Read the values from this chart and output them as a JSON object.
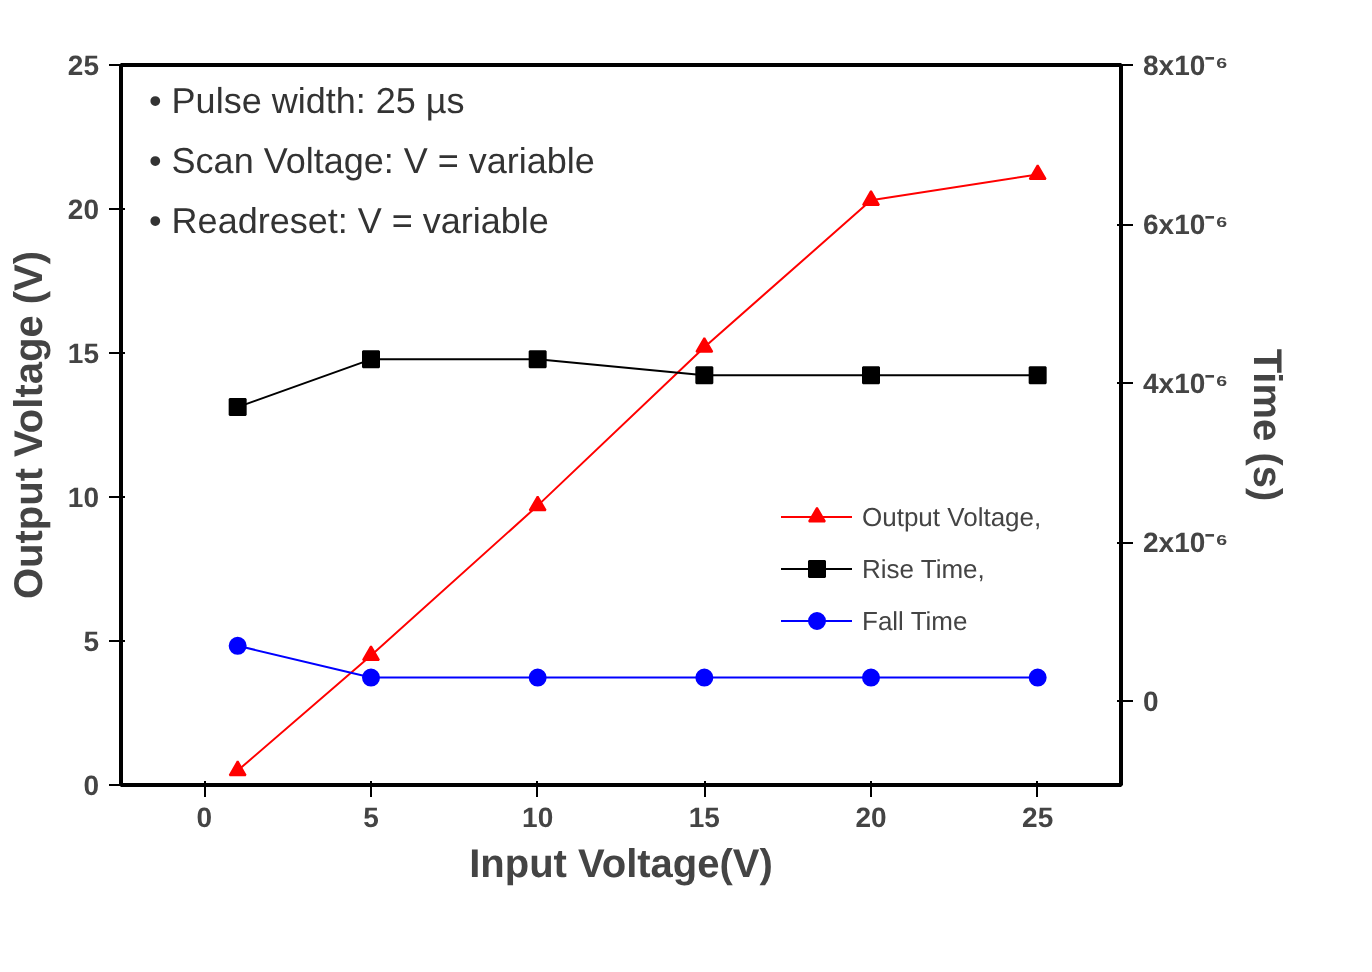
{
  "chart_data": {
    "type": "line",
    "xlabel": "Input Voltage(V)",
    "ylabel": "Output Voltage (V)",
    "y2label": "Time (s)",
    "x": [
      1,
      5,
      10,
      15,
      20,
      25
    ],
    "series": [
      {
        "name": "Output Voltage,",
        "color": "#ff0000",
        "marker": "triangle",
        "values": [
          0.5,
          4.5,
          9.7,
          15.2,
          20.3,
          21.2
        ]
      },
      {
        "name": "Rise Time,",
        "color": "#000000",
        "marker": "square",
        "axis": "y2",
        "values": [
          3.7e-06,
          4.3e-06,
          4.3e-06,
          4.1e-06,
          4.1e-06,
          4.1e-06
        ]
      },
      {
        "name": "Fall Time",
        "color": "#0000ff",
        "marker": "circle",
        "axis": "y2",
        "values": [
          7e-07,
          3e-07,
          3e-07,
          3e-07,
          3e-07,
          3e-07
        ]
      }
    ],
    "xlim": [
      -2.5,
      27.5
    ],
    "xticks": [
      0,
      5,
      10,
      15,
      20,
      25
    ],
    "ylim": [
      0,
      25
    ],
    "yticks": [
      0,
      5,
      10,
      15,
      20,
      25
    ],
    "y2lim": [
      -1.05e-06,
      8e-06
    ],
    "y2ticks": [
      {
        "value": 0,
        "label": "0"
      },
      {
        "value": 2e-06,
        "label": "2x10⁻⁶"
      },
      {
        "value": 4e-06,
        "label": "4x10⁻⁶"
      },
      {
        "value": 6e-06,
        "label": "6x10⁻⁶"
      },
      {
        "value": 8e-06,
        "label": "8x10⁻⁶"
      }
    ],
    "annotations": [
      "• Pulse width: 25 µs",
      "• Scan Voltage: V = variable",
      "• Readreset: V = variable"
    ],
    "legend": "center right",
    "grid": false,
    "line_style": "solid"
  }
}
